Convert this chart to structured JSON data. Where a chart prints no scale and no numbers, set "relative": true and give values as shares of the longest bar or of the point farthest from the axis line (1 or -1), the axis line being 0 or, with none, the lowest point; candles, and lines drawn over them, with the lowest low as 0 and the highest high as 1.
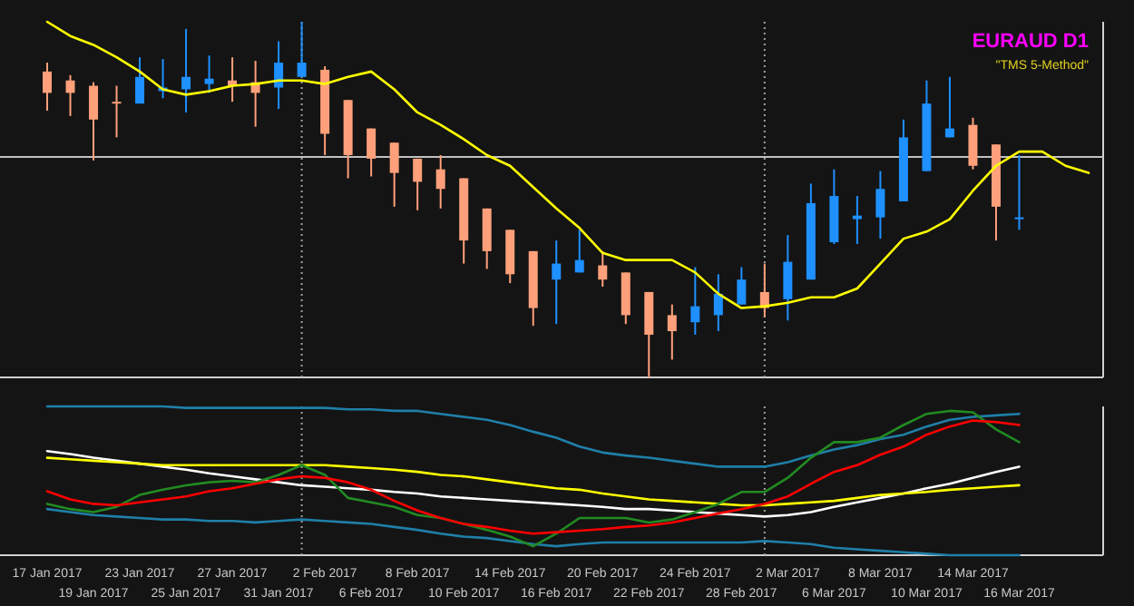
{
  "chart_data": [
    {
      "type": "candlestick",
      "title": "EURAUD D1",
      "annotations": [
        "\"TMS 5-Method\""
      ],
      "relative": true,
      "categories": [
        null,
        null,
        null,
        null,
        null,
        null,
        null,
        null,
        null,
        null,
        null,
        null,
        null,
        null,
        null,
        null,
        null,
        null,
        null,
        null,
        null,
        null,
        null,
        null,
        null,
        null,
        null,
        null,
        null,
        null,
        null,
        null,
        null,
        null,
        null,
        null,
        null,
        null,
        null,
        null,
        null,
        null,
        null,
        null,
        null,
        null
      ],
      "ohlc": [
        [
          0.86,
          0.885,
          0.75,
          0.8
        ],
        [
          0.835,
          0.85,
          0.735,
          0.8
        ],
        [
          0.82,
          0.83,
          0.61,
          0.725
        ],
        [
          0.775,
          0.82,
          0.675,
          0.77
        ],
        [
          0.77,
          0.9,
          0.77,
          0.845
        ],
        [
          0.805,
          0.895,
          0.785,
          0.815
        ],
        [
          0.81,
          0.98,
          0.745,
          0.845
        ],
        [
          0.825,
          0.905,
          0.8,
          0.84
        ],
        [
          0.835,
          0.9,
          0.775,
          0.82
        ],
        [
          0.83,
          0.89,
          0.705,
          0.8
        ],
        [
          0.815,
          0.945,
          0.755,
          0.885
        ],
        [
          0.845,
          1,
          0.845,
          0.885
        ],
        [
          0.865,
          0.875,
          0.625,
          0.685
        ],
        [
          0.78,
          0.78,
          0.56,
          0.625
        ],
        [
          0.7,
          0.7,
          0.565,
          0.615
        ],
        [
          0.66,
          0.66,
          0.48,
          0.575
        ],
        [
          0.615,
          0.615,
          0.47,
          0.55
        ],
        [
          0.585,
          0.625,
          0.475,
          0.53
        ],
        [
          0.56,
          0.56,
          0.32,
          0.385
        ],
        [
          0.475,
          0.475,
          0.305,
          0.355
        ],
        [
          0.415,
          0.415,
          0.265,
          0.29
        ],
        [
          0.355,
          0.355,
          0.145,
          0.195
        ],
        [
          0.275,
          0.385,
          0.15,
          0.32
        ],
        [
          0.295,
          0.415,
          0.295,
          0.33
        ],
        [
          0.315,
          0.355,
          0.255,
          0.275
        ],
        [
          0.295,
          0.295,
          0.15,
          0.175
        ],
        [
          0.24,
          0.24,
          0,
          0.12
        ],
        [
          0.175,
          0.205,
          0.05,
          0.13
        ],
        [
          0.155,
          0.31,
          0.12,
          0.2
        ],
        [
          0.175,
          0.29,
          0.13,
          0.235
        ],
        [
          0.205,
          0.31,
          0.205,
          0.275
        ],
        [
          0.24,
          0.32,
          0.17,
          0.195
        ],
        [
          0.22,
          0.4,
          0.16,
          0.325
        ],
        [
          0.275,
          0.545,
          0.275,
          0.49
        ],
        [
          0.38,
          0.585,
          0.375,
          0.51
        ],
        [
          0.445,
          0.51,
          0.375,
          0.455
        ],
        [
          0.45,
          0.58,
          0.39,
          0.53
        ],
        [
          0.495,
          0.725,
          0.495,
          0.675
        ],
        [
          0.58,
          0.835,
          0.58,
          0.77
        ],
        [
          0.675,
          0.845,
          0.675,
          0.7
        ],
        [
          0.71,
          0.73,
          0.585,
          0.595
        ],
        [
          0.655,
          0.655,
          0.385,
          0.48
        ],
        [
          0.445,
          0.625,
          0.415,
          0.45
        ],
        null,
        null,
        null
      ],
      "colors": [
        "#ffa07a",
        "#ffa07a",
        "#ffa07a",
        "#ffa07a",
        "#1e90ff",
        "#1e90ff",
        "#1e90ff",
        "#1e90ff",
        "#ffa07a",
        "#ffa07a",
        "#1e90ff",
        "#1e90ff",
        "#ffa07a",
        "#ffa07a",
        "#ffa07a",
        "#ffa07a",
        "#ffa07a",
        "#ffa07a",
        "#ffa07a",
        "#ffa07a",
        "#ffa07a",
        "#ffa07a",
        "#1e90ff",
        "#1e90ff",
        "#ffa07a",
        "#ffa07a",
        "#ffa07a",
        "#ffa07a",
        "#1e90ff",
        "#1e90ff",
        "#1e90ff",
        "#ffa07a",
        "#1e90ff",
        "#1e90ff",
        "#1e90ff",
        "#1e90ff",
        "#1e90ff",
        "#1e90ff",
        "#1e90ff",
        "#1e90ff",
        "#ffa07a",
        "#ffa07a",
        "#1e90ff",
        null,
        null,
        null
      ],
      "series": [
        {
          "type": "line",
          "color": "#ffff00",
          "values": [
            1,
            0.96,
            0.935,
            0.9,
            0.86,
            0.81,
            0.795,
            0.805,
            0.82,
            0.825,
            0.835,
            0.835,
            0.825,
            0.845,
            0.86,
            0.81,
            0.745,
            0.71,
            0.67,
            0.625,
            0.595,
            0.535,
            0.475,
            0.42,
            0.35,
            0.33,
            0.33,
            0.33,
            0.295,
            0.235,
            0.195,
            0.2,
            0.21,
            0.225,
            0.225,
            0.25,
            0.32,
            0.39,
            0.41,
            0.445,
            0.525,
            0.595,
            0.635,
            0.635,
            0.595,
            0.575
          ]
        }
      ],
      "ref_lines": [
        {
          "axis": "y",
          "value": 0.62,
          "color": "#c0c0c0",
          "line_style": "solid"
        }
      ]
    },
    {
      "type": "line",
      "relative": true,
      "tick_labels": "x",
      "categories": [
        "17 Jan 2017",
        null,
        "19 Jan 2017",
        null,
        "23 Jan 2017",
        null,
        "25 Jan 2017",
        null,
        "27 Jan 2017",
        null,
        "31 Jan 2017",
        null,
        "2 Feb 2017",
        null,
        "6 Feb 2017",
        null,
        "8 Feb 2017",
        null,
        "10 Feb 2017",
        null,
        "14 Feb 2017",
        null,
        "16 Feb 2017",
        null,
        "20 Feb 2017",
        null,
        "22 Feb 2017",
        null,
        "24 Feb 2017",
        null,
        "28 Feb 2017",
        null,
        "2 Mar 2017",
        null,
        "6 Mar 2017",
        null,
        "8 Mar 2017",
        null,
        "10 Mar 2017",
        null,
        "14 Mar 2017",
        null,
        "16 Mar 2017",
        null,
        null,
        null
      ],
      "series": [
        {
          "color": "#1f7fa8",
          "values": [
            1,
            1,
            1,
            1,
            1,
            1,
            0.99,
            0.99,
            0.99,
            0.99,
            0.99,
            0.99,
            0.99,
            0.98,
            0.98,
            0.97,
            0.97,
            0.95,
            0.93,
            0.91,
            0.875,
            0.83,
            0.79,
            0.73,
            0.69,
            0.67,
            0.655,
            0.635,
            0.615,
            0.595,
            0.595,
            0.595,
            0.625,
            0.67,
            0.71,
            0.74,
            0.78,
            0.81,
            0.865,
            0.91,
            0.93,
            0.94,
            0.95,
            null,
            null,
            null
          ]
        },
        {
          "color": "#1f7fa8",
          "values": [
            0.31,
            0.29,
            0.27,
            0.26,
            0.25,
            0.24,
            0.24,
            0.23,
            0.23,
            0.22,
            0.23,
            0.24,
            0.23,
            0.22,
            0.21,
            0.19,
            0.17,
            0.145,
            0.125,
            0.115,
            0.095,
            0.075,
            0.06,
            0.075,
            0.085,
            0.085,
            0.085,
            0.085,
            0.085,
            0.085,
            0.085,
            0.095,
            0.085,
            0.075,
            0.05,
            0.04,
            0.03,
            0.02,
            0.01,
            0,
            0,
            0,
            0,
            null,
            null,
            null
          ]
        },
        {
          "color": "#ffffff",
          "values": [
            0.7,
            0.68,
            0.655,
            0.635,
            0.615,
            0.595,
            0.575,
            0.55,
            0.53,
            0.51,
            0.49,
            0.47,
            0.46,
            0.45,
            0.44,
            0.425,
            0.415,
            0.395,
            0.385,
            0.375,
            0.365,
            0.355,
            0.345,
            0.335,
            0.325,
            0.31,
            0.31,
            0.3,
            0.29,
            0.28,
            0.27,
            0.26,
            0.27,
            0.29,
            0.325,
            0.355,
            0.385,
            0.415,
            0.45,
            0.48,
            0.52,
            0.56,
            0.595,
            null,
            null,
            null
          ]
        },
        {
          "color": "#ffff00",
          "values": [
            0.655,
            0.645,
            0.635,
            0.625,
            0.615,
            0.605,
            0.605,
            0.605,
            0.605,
            0.605,
            0.605,
            0.605,
            0.605,
            0.595,
            0.585,
            0.575,
            0.56,
            0.54,
            0.53,
            0.51,
            0.49,
            0.47,
            0.45,
            0.44,
            0.415,
            0.395,
            0.375,
            0.365,
            0.355,
            0.345,
            0.335,
            0.335,
            0.345,
            0.355,
            0.365,
            0.385,
            0.405,
            0.415,
            0.425,
            0.44,
            0.45,
            0.46,
            0.47,
            null,
            null,
            null
          ]
        },
        {
          "color": "#228b22",
          "values": [
            0.345,
            0.31,
            0.29,
            0.325,
            0.405,
            0.44,
            0.47,
            0.49,
            0.5,
            0.49,
            0.54,
            0.605,
            0.54,
            0.385,
            0.355,
            0.325,
            0.27,
            0.25,
            0.21,
            0.17,
            0.125,
            0.06,
            0.145,
            0.25,
            0.25,
            0.25,
            0.22,
            0.24,
            0.29,
            0.345,
            0.425,
            0.425,
            0.52,
            0.655,
            0.76,
            0.76,
            0.79,
            0.875,
            0.95,
            0.97,
            0.96,
            0.845,
            0.76,
            null,
            null,
            null
          ]
        },
        {
          "color": "#ff0000",
          "values": [
            0.43,
            0.375,
            0.345,
            0.335,
            0.355,
            0.375,
            0.395,
            0.43,
            0.45,
            0.48,
            0.51,
            0.53,
            0.52,
            0.49,
            0.44,
            0.365,
            0.3,
            0.25,
            0.21,
            0.19,
            0.165,
            0.145,
            0.155,
            0.165,
            0.175,
            0.19,
            0.2,
            0.22,
            0.25,
            0.28,
            0.31,
            0.345,
            0.395,
            0.48,
            0.56,
            0.605,
            0.675,
            0.73,
            0.81,
            0.865,
            0.905,
            0.895,
            0.875,
            null,
            null,
            null
          ]
        }
      ]
    }
  ]
}
